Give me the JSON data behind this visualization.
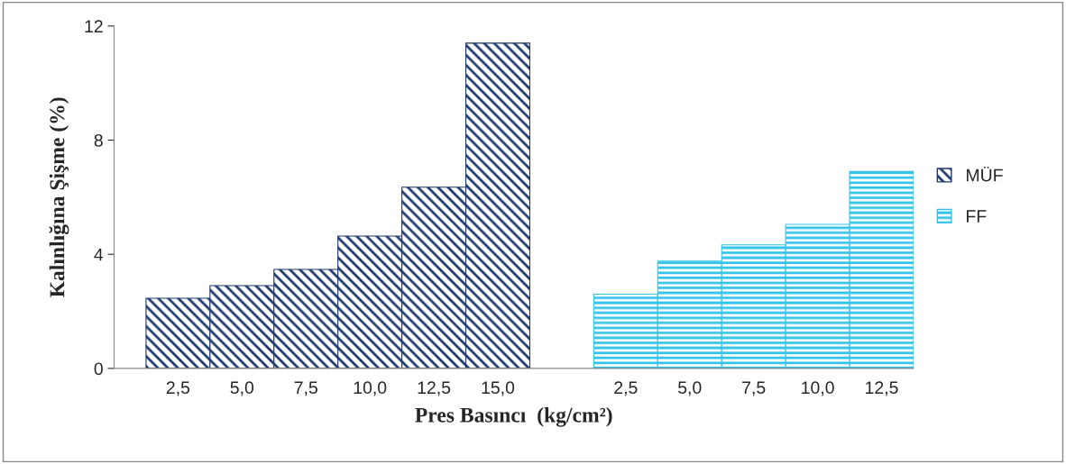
{
  "chart_data": {
    "type": "bar",
    "xlabel": "Pres Basıncı  (kg/cm²)",
    "ylabel": "Kalınlığına Şişme (%)",
    "categories": [
      "2,5",
      "5,0",
      "7,5",
      "10,0",
      "12,5",
      "15,0",
      null,
      "2,5",
      "5,0",
      "7,5",
      "10,0",
      "12,5"
    ],
    "series": [
      {
        "name": "MÜF",
        "color": "#1f3a6e",
        "values": [
          2.46,
          2.9,
          3.47,
          4.64,
          6.35,
          11.4,
          null,
          null,
          null,
          null,
          null,
          null
        ]
      },
      {
        "name": "FF",
        "color": "#33c3e8",
        "values": [
          null,
          null,
          null,
          null,
          null,
          null,
          null,
          2.6,
          3.76,
          4.33,
          5.05,
          6.9
        ]
      }
    ],
    "ylim": [
      0,
      12
    ],
    "yticks": [
      0,
      4,
      8,
      12
    ],
    "grid": false,
    "legend": "right"
  }
}
